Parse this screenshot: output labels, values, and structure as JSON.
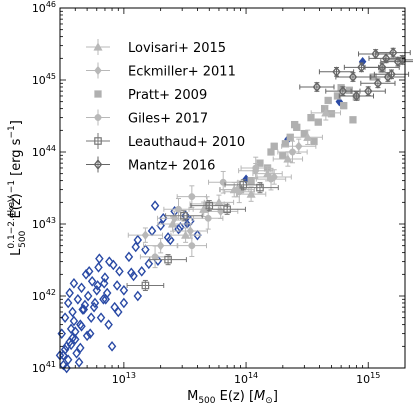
{
  "chart_data": {
    "type": "scatter",
    "xscale": "log",
    "yscale": "log",
    "xlim": [
      3000000000000.0,
      2000000000000000.0
    ],
    "ylim": [
      1e+41,
      1e+46
    ],
    "xlabel": {
      "main": "M",
      "sub": "500",
      "post": " E(z) [",
      "unit_italic": "M",
      "unit_sub": "⊙",
      "close": "]"
    },
    "ylabel": {
      "main": "L",
      "sup": "0.1−2.4keV",
      "sub": "500",
      "post": " E(z)",
      "post_sup": "−1",
      "post2": " [erg s",
      "post2_sup": "−1",
      "close": "]"
    },
    "x_ticks": [
      {
        "value": 10000000000000.0,
        "base": "10",
        "exp": "13"
      },
      {
        "value": 100000000000000.0,
        "base": "10",
        "exp": "14"
      },
      {
        "value": 1000000000000000.0,
        "base": "10",
        "exp": "15"
      }
    ],
    "y_ticks": [
      {
        "value": 1e+41,
        "base": "10",
        "exp": "41"
      },
      {
        "value": 1e+42,
        "base": "10",
        "exp": "42"
      },
      {
        "value": 1e+43,
        "base": "10",
        "exp": "43"
      },
      {
        "value": 1e+44,
        "base": "10",
        "exp": "44"
      },
      {
        "value": 1e+45,
        "base": "10",
        "exp": "45"
      },
      {
        "value": 1e+46,
        "base": "10",
        "exp": "46"
      }
    ],
    "legend_position": "top-left",
    "legend": [
      {
        "name": "Lovisari+ 2015",
        "marker": "triangle",
        "color": "#b8b8b8",
        "errorbar": true
      },
      {
        "name": "Eckmiller+ 2011",
        "marker": "diamond",
        "color": "#b8b8b8",
        "errorbar": true
      },
      {
        "name": "Pratt+ 2009",
        "marker": "square",
        "color": "#b0b0b0",
        "errorbar": false
      },
      {
        "name": "Giles+ 2017",
        "marker": "circle",
        "color": "#b8b8b8",
        "errorbar": true
      },
      {
        "name": "Leauthaud+ 2010",
        "marker": "square-open",
        "color": "#777777",
        "errorbar": true
      },
      {
        "name": "Mantz+ 2016",
        "marker": "diamond-open",
        "color": "#666666",
        "errorbar": true
      }
    ],
    "series": [
      {
        "marker": "diamond-open",
        "color": "#2a4aa5",
        "errorbar": false,
        "x": [
          3100000000000.0,
          3200000000000.0,
          3300000000000.0,
          3400000000000.0,
          3500000000000.0,
          3600000000000.0,
          3700000000000.0,
          3800000000000.0,
          3900000000000.0,
          4000000000000.0,
          4200000000000.0,
          4400000000000.0,
          4500000000000.0,
          4700000000000.0,
          4900000000000.0,
          5100000000000.0,
          5300000000000.0,
          5500000000000.0,
          5700000000000.0,
          6000000000000.0,
          6200000000000.0,
          6500000000000.0,
          6800000000000.0,
          7000000000000.0,
          7300000000000.0,
          7600000000000.0,
          8000000000000.0,
          8400000000000.0,
          8800000000000.0,
          9200000000000.0,
          3300000000000.0,
          3600000000000.0,
          3900000000000.0,
          4300000000000.0,
          4600000000000.0,
          5000000000000.0,
          5400000000000.0,
          5800000000000.0,
          6300000000000.0,
          6900000000000.0,
          7500000000000.0,
          8200000000000.0,
          9000000000000.0,
          10000000000000.0,
          11000000000000.0,
          12000000000000.0,
          13000000000000.0,
          14000000000000.0,
          15000000000000.0,
          17000000000000.0,
          19000000000000.0,
          21000000000000.0,
          23000000000000.0,
          26000000000000.0,
          29000000000000.0,
          32000000000000.0,
          10000000000000.0,
          11500000000000.0,
          12500000000000.0,
          16000000000000.0,
          18000000000000.0,
          20000000000000.0,
          24000000000000.0,
          28000000000000.0,
          35000000000000.0,
          40000000000000.0,
          3200000000000.0,
          3500000000000.0,
          3800000000000.0,
          4100000000000.0,
          4500000000000.0,
          5200000000000.0,
          6100000000000.0,
          7100000000000.0,
          13000000000000.0,
          4800000000000.0,
          3400000000000.0,
          3000000000000.0,
          3700000000000.0,
          4000000000000.0,
          4400000000000.0
        ],
        "y": [
          3e+41,
          1.5e+41,
          5e+41,
          2e+41,
          8e+41,
          1.1e+42,
          3.5e+41,
          6e+41,
          1.5e+42,
          2.5e+41,
          9e+41,
          4e+41,
          1.3e+42,
          6.5e+41,
          2e+42,
          1e+42,
          3e+41,
          1.6e+42,
          7e+41,
          1.2e+42,
          2.5e+42,
          5e+41,
          9e+41,
          1.8e+42,
          1.1e+42,
          3e+42,
          2e+41,
          7e+41,
          1.4e+42,
          2.2e+42,
          1.8e+41,
          2.3e+41,
          4.5e+41,
          1.2e+41,
          6.5e+41,
          2.8e+41,
          5e+41,
          8e+41,
          3.3e+42,
          1.5e+42,
          4e+41,
          2.7e+42,
          6e+41,
          1.2e+42,
          3.5e+42,
          1.9e+42,
          6e+42,
          2.2e+42,
          4.4e+42,
          8e+42,
          3.1e+42,
          1.2e+43,
          6.5e+42,
          1.5e+43,
          9e+42,
          1.3e+43,
          8e+41,
          2.1e+42,
          4.8e+42,
          2.8e+42,
          1.8e+43,
          9.5e+42,
          6e+42,
          8.5e+42,
          1.1e+43,
          7e+42,
          1.1e+41,
          1.3e+41,
          2.6e+41,
          1.6e+41,
          3.8e+41,
          2.2e+42,
          1.4e+42,
          9e+41,
          1e+42,
          7.5e+41,
          1e+41,
          1.5e+41,
          2.1e+41,
          3.2e+41,
          1.9e+41
        ]
      },
      {
        "marker": "diamond",
        "color": "#2a4aa5",
        "errorbar": false,
        "x": [
          33000000000000.0,
          100000000000000.0,
          220000000000000.0,
          580000000000000.0,
          900000000000000.0
        ],
        "y": [
          1e+43,
          4.2e+43,
          1.5e+44,
          5e+44,
          1.8e+45
        ]
      },
      {
        "marker": "square",
        "color": "#b0b0b0",
        "errorbar": false,
        "x": [
          110000000000000.0,
          130000000000000.0,
          150000000000000.0,
          170000000000000.0,
          200000000000000.0,
          230000000000000.0,
          260000000000000.0,
          300000000000000.0,
          340000000000000.0,
          390000000000000.0,
          440000000000000.0,
          500000000000000.0,
          560000000000000.0,
          630000000000000.0,
          700000000000000.0,
          800000000000000.0,
          1100000000000000.0,
          1300000000000000.0,
          90000000000000.0,
          160000000000000.0,
          250000000000000.0,
          360000000000000.0,
          470000000000000.0,
          600000000000000.0,
          750000000000000.0,
          210000000000000.0
        ],
        "y": [
          4e+43,
          7e+43,
          6e+43,
          1.2e+44,
          9e+43,
          1.6e+44,
          2.2e+44,
          1.8e+44,
          3e+44,
          2.6e+44,
          4e+44,
          3.4e+44,
          6e+44,
          4.4e+44,
          7.2e+44,
          5.8e+44,
          1.1e+45,
          1.4e+45,
          3e+43,
          1e+44,
          2.4e+44,
          1.4e+44,
          5.2e+44,
          7.8e+44,
          2.8e+44,
          1.3e+44
        ]
      },
      {
        "marker": "triangle",
        "color": "#b8b8b8",
        "errorbar": true,
        "x": [
          25000000000000.0,
          32000000000000.0,
          45000000000000.0,
          60000000000000.0,
          80000000000000.0,
          110000000000000.0,
          150000000000000.0,
          220000000000000.0,
          320000000000000.0,
          450000000000000.0
        ],
        "y": [
          1e+43,
          7e+42,
          1.6e+43,
          2e+43,
          3e+43,
          2.6e+43,
          5e+43,
          8e+43,
          1.6e+44,
          3.5e+44
        ],
        "xerr": 0.12,
        "yerr": 0.1
      },
      {
        "marker": "diamond",
        "color": "#b8b8b8",
        "errorbar": true,
        "x": [
          15000000000000.0,
          20000000000000.0,
          26000000000000.0,
          35000000000000.0,
          48000000000000.0,
          62000000000000.0,
          85000000000000.0,
          120000000000000.0,
          170000000000000.0,
          270000000000000.0
        ],
        "y": [
          7e+42,
          5e+42,
          1.2e+43,
          8e+42,
          1.9e+43,
          1.5e+43,
          3e+43,
          5.5e+43,
          4.5e+43,
          1.2e+44
        ],
        "xerr": 0.14,
        "yerr": 0.1
      },
      {
        "marker": "circle",
        "color": "#b8b8b8",
        "errorbar": true,
        "x": [
          28000000000000.0,
          36000000000000.0,
          49000000000000.0,
          65000000000000.0,
          88000000000000.0,
          120000000000000.0,
          160000000000000.0,
          240000000000000.0,
          36000000000000.0,
          18000000000000.0
        ],
        "y": [
          1.6e+43,
          2.4e+43,
          1.2e+43,
          3.8e+43,
          2.8e+43,
          6e+43,
          4.2e+43,
          1e+44,
          5e+42,
          3.5e+42
        ],
        "xerr": 0.12,
        "yerr": 0.15
      },
      {
        "marker": "square-open",
        "color": "#777777",
        "errorbar": true,
        "x": [
          15000000000000.0,
          23000000000000.0,
          31000000000000.0,
          50000000000000.0,
          70000000000000.0,
          95000000000000.0,
          130000000000000.0
        ],
        "y": [
          1.4e+42,
          3.2e+42,
          1.3e+43,
          1.8e+43,
          1.6e+43,
          3.5e+43,
          3.2e+43
        ],
        "xerr": 0.15,
        "yerr": 0.07
      },
      {
        "marker": "diamond-open",
        "color": "#666666",
        "errorbar": true,
        "x": [
          380000000000000.0,
          550000000000000.0,
          620000000000000.0,
          750000000000000.0,
          880000000000000.0,
          1000000000000000.0,
          1150000000000000.0,
          1300000000000000.0,
          1450000000000000.0,
          1600000000000000.0,
          1750000000000000.0,
          1900000000000000.0,
          1200000000000000.0,
          800000000000000.0,
          1400000000000000.0,
          1550000000000000.0
        ],
        "y": [
          8e+44,
          1.3e+45,
          7e+44,
          1.1e+45,
          1.5e+45,
          7e+44,
          2.3e+45,
          1.5e+45,
          1.1e+45,
          2.4e+45,
          1.8e+45,
          1.9e+45,
          9e+44,
          6e+44,
          2e+45,
          1.2e+45
        ],
        "xerr": 0.14,
        "yerr": 0.06
      }
    ]
  }
}
